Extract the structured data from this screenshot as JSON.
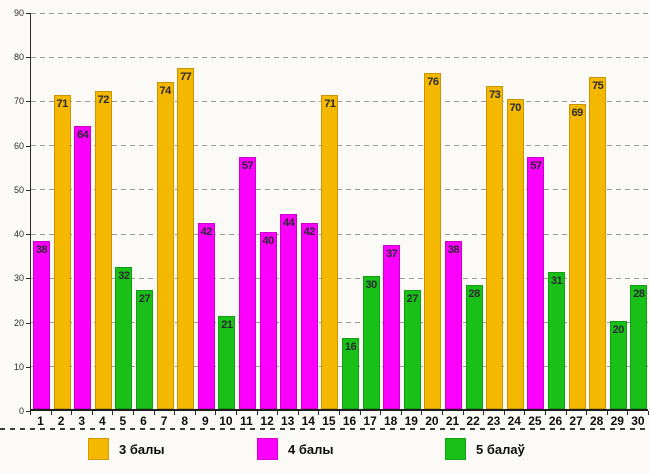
{
  "chart_data": {
    "type": "bar",
    "title": "",
    "xlabel": "",
    "ylabel": "",
    "ylim": [
      0,
      90
    ],
    "y_ticks": [
      90,
      80,
      70,
      60,
      50,
      40,
      30,
      20,
      10,
      0
    ],
    "grid": "horizontal-dashed",
    "legend_position": "bottom",
    "categories": [
      "1",
      "2",
      "3",
      "4",
      "5",
      "6",
      "7",
      "8",
      "9",
      "10",
      "11",
      "12",
      "13",
      "14",
      "15",
      "16",
      "17",
      "18",
      "19",
      "20",
      "21",
      "22",
      "23",
      "24",
      "25",
      "26",
      "27",
      "28",
      "29",
      "30"
    ],
    "series_colors": {
      "3 балы": "#f5b800",
      "4 балы": "#fb00fb",
      "5 балаў": "#18c018"
    },
    "bars": [
      {
        "category": "1",
        "value": 38,
        "series": "4 балы"
      },
      {
        "category": "2",
        "value": 71,
        "series": "3 балы"
      },
      {
        "category": "3",
        "value": 64,
        "series": "4 балы"
      },
      {
        "category": "4",
        "value": 72,
        "series": "3 балы"
      },
      {
        "category": "5",
        "value": 32,
        "series": "5 балаў"
      },
      {
        "category": "6",
        "value": 27,
        "series": "5 балаў"
      },
      {
        "category": "7",
        "value": 74,
        "series": "3 балы"
      },
      {
        "category": "8",
        "value": 77,
        "series": "3 балы"
      },
      {
        "category": "9",
        "value": 42,
        "series": "4 балы"
      },
      {
        "category": "10",
        "value": 21,
        "series": "5 балаў"
      },
      {
        "category": "11",
        "value": 57,
        "series": "4 балы"
      },
      {
        "category": "12",
        "value": 40,
        "series": "4 балы"
      },
      {
        "category": "13",
        "value": 44,
        "series": "4 балы"
      },
      {
        "category": "14",
        "value": 42,
        "series": "4 балы"
      },
      {
        "category": "15",
        "value": 71,
        "series": "3 балы"
      },
      {
        "category": "16",
        "value": 16,
        "series": "5 балаў"
      },
      {
        "category": "17",
        "value": 30,
        "series": "5 балаў"
      },
      {
        "category": "18",
        "value": 37,
        "series": "4 балы"
      },
      {
        "category": "19",
        "value": 27,
        "series": "5 балаў"
      },
      {
        "category": "20",
        "value": 76,
        "series": "3 балы"
      },
      {
        "category": "21",
        "value": 38,
        "series": "4 балы"
      },
      {
        "category": "22",
        "value": 28,
        "series": "5 балаў"
      },
      {
        "category": "23",
        "value": 73,
        "series": "3 балы"
      },
      {
        "category": "24",
        "value": 70,
        "series": "3 балы"
      },
      {
        "category": "25",
        "value": 57,
        "series": "4 балы"
      },
      {
        "category": "26",
        "value": 31,
        "series": "5 балаў"
      },
      {
        "category": "27",
        "value": 69,
        "series": "3 балы"
      },
      {
        "category": "28",
        "value": 75,
        "series": "3 балы"
      },
      {
        "category": "29",
        "value": 20,
        "series": "5 балаў"
      },
      {
        "category": "30",
        "value": 28,
        "series": "5 балаў"
      }
    ]
  },
  "legend": {
    "items": [
      {
        "label": "3 балы",
        "color": "#f5b800"
      },
      {
        "label": "4 балы",
        "color": "#fb00fb"
      },
      {
        "label": "5 балаў",
        "color": "#18c018"
      }
    ]
  }
}
